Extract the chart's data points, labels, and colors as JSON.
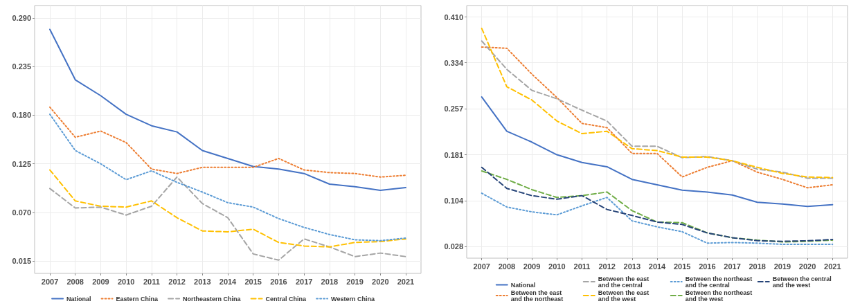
{
  "chart_data": [
    {
      "type": "line",
      "x": [
        2007,
        2008,
        2009,
        2010,
        2011,
        2012,
        2013,
        2014,
        2015,
        2016,
        2017,
        2018,
        2019,
        2020,
        2021
      ],
      "xlim": [
        2006.4,
        2021.6
      ],
      "xticks": [
        2007,
        2008,
        2009,
        2010,
        2011,
        2012,
        2013,
        2014,
        2015,
        2016,
        2017,
        2018,
        2019,
        2020,
        2021
      ],
      "ylim": [
        0.001,
        0.304
      ],
      "yticks": [
        0.015,
        {
          "value": 0.07,
          "label": "0.070"
        },
        0.125,
        {
          "value": 0.18,
          "label": "0.180"
        },
        0.235,
        {
          "value": 0.29,
          "label": "0.290"
        }
      ],
      "grid": true,
      "legend": "bottom",
      "series": [
        {
          "name": "National",
          "color": "#4472c4",
          "line_style": "solid",
          "values": [
            0.277,
            0.22,
            0.202,
            0.181,
            0.168,
            0.161,
            0.14,
            0.131,
            0.122,
            0.119,
            0.114,
            0.102,
            0.099,
            0.095,
            0.098
          ]
        },
        {
          "name": "Eastern China",
          "color": "#ed7d31",
          "line_style": "dotted",
          "values": [
            0.189,
            0.155,
            0.162,
            0.149,
            0.119,
            0.114,
            0.121,
            0.121,
            0.121,
            0.131,
            0.118,
            0.115,
            0.114,
            0.11,
            0.112
          ]
        },
        {
          "name": "Northeastern China",
          "color": "#a5a5a5",
          "line_style": "dashed",
          "values": [
            0.097,
            0.075,
            0.076,
            0.067,
            0.077,
            0.11,
            0.08,
            0.064,
            0.023,
            0.016,
            0.04,
            0.031,
            0.02,
            0.024,
            0.02
          ]
        },
        {
          "name": "Central China",
          "color": "#ffc000",
          "line_style": "dashed",
          "values": [
            0.118,
            0.083,
            0.077,
            0.076,
            0.083,
            0.064,
            0.049,
            0.048,
            0.051,
            0.036,
            0.032,
            0.031,
            0.036,
            0.037,
            0.04
          ]
        },
        {
          "name": "Western China",
          "color": "#5b9bd5",
          "line_style": "dotted",
          "values": [
            0.181,
            0.14,
            0.125,
            0.107,
            0.117,
            0.104,
            0.093,
            0.081,
            0.076,
            0.063,
            0.053,
            0.045,
            0.039,
            0.038,
            0.041
          ]
        }
      ]
    },
    {
      "type": "line",
      "x": [
        2007,
        2008,
        2009,
        2010,
        2011,
        2012,
        2013,
        2014,
        2015,
        2016,
        2017,
        2018,
        2019,
        2020,
        2021
      ],
      "xlim": [
        2006.4,
        2021.6
      ],
      "xticks": [
        2007,
        2008,
        2009,
        2010,
        2011,
        2012,
        2013,
        2014,
        2015,
        2016,
        2017,
        2018,
        2019,
        2020,
        2021
      ],
      "ylim": [
        0.009,
        0.429
      ],
      "yticks": [
        0.028,
        0.104,
        0.181,
        0.257,
        0.334,
        {
          "value": 0.41,
          "label": "0.410"
        }
      ],
      "grid": true,
      "legend": "bottom",
      "series": [
        {
          "name": "National",
          "color": "#4472c4",
          "line_style": "solid",
          "values": [
            0.277,
            0.22,
            0.202,
            0.181,
            0.168,
            0.161,
            0.14,
            0.131,
            0.122,
            0.119,
            0.114,
            0.102,
            0.099,
            0.095,
            0.098
          ]
        },
        {
          "name": "Between the east and the northeast",
          "color": "#ed7d31",
          "line_style": "dotted",
          "values": [
            0.36,
            0.358,
            0.315,
            0.276,
            0.233,
            0.226,
            0.183,
            0.183,
            0.144,
            0.16,
            0.171,
            0.152,
            0.14,
            0.126,
            0.131
          ]
        },
        {
          "name": "Between the east and the central",
          "color": "#a5a5a5",
          "line_style": "dashed",
          "values": [
            0.37,
            0.323,
            0.288,
            0.274,
            0.255,
            0.237,
            0.195,
            0.195,
            0.176,
            0.178,
            0.171,
            0.157,
            0.152,
            0.142,
            0.142
          ]
        },
        {
          "name": "Between the east and the west",
          "color": "#ffc000",
          "line_style": "dashed",
          "values": [
            0.391,
            0.294,
            0.272,
            0.237,
            0.216,
            0.22,
            0.191,
            0.188,
            0.177,
            0.177,
            0.171,
            0.16,
            0.15,
            0.144,
            0.143
          ]
        },
        {
          "name": "Between the northeast and the central",
          "color": "#5b9bd5",
          "line_style": "dotted",
          "values": [
            0.117,
            0.094,
            0.086,
            0.081,
            0.096,
            0.11,
            0.071,
            0.061,
            0.053,
            0.034,
            0.035,
            0.034,
            0.032,
            0.032,
            0.032
          ]
        },
        {
          "name": "Between the northeast and the west",
          "color": "#70ad47",
          "line_style": "dashed",
          "values": [
            0.154,
            0.14,
            0.123,
            0.11,
            0.113,
            0.119,
            0.088,
            0.069,
            0.068,
            0.051,
            0.043,
            0.039,
            0.036,
            0.037,
            0.039
          ]
        },
        {
          "name": "Between the central and the west",
          "color": "#264478",
          "line_style": "dashed",
          "values": [
            0.16,
            0.125,
            0.113,
            0.107,
            0.113,
            0.09,
            0.08,
            0.069,
            0.065,
            0.051,
            0.043,
            0.038,
            0.037,
            0.038,
            0.04
          ]
        }
      ]
    }
  ]
}
